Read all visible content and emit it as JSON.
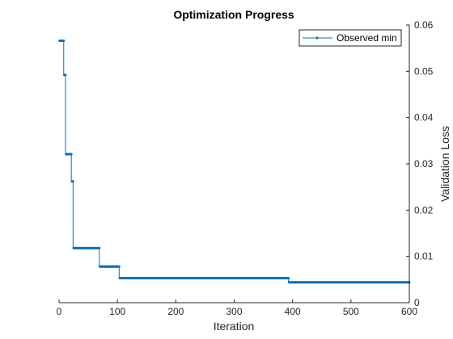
{
  "chart_data": {
    "type": "line",
    "title": "Optimization Progress",
    "xlabel": "Iteration",
    "ylabel": "Validation Loss",
    "xlim": [
      0,
      600
    ],
    "ylim": [
      0,
      0.06
    ],
    "x_ticks": [
      0,
      100,
      200,
      300,
      400,
      500,
      600
    ],
    "x_tick_labels": [
      "0",
      "100",
      "200",
      "300",
      "400",
      "500",
      "600"
    ],
    "y_ticks": [
      0,
      0.01,
      0.02,
      0.03,
      0.04,
      0.05,
      0.06
    ],
    "y_tick_labels": [
      "0",
      "0.01",
      "0.02",
      "0.03",
      "0.04",
      "0.05",
      "0.06"
    ],
    "y_axis_location": "right",
    "grid": false,
    "legend_placement": "top-right",
    "series": [
      {
        "name": "Observed min",
        "color": "#0072BD",
        "marker": "dot",
        "step_changes": [
          [
            1,
            0.0566
          ],
          [
            9,
            0.0492
          ],
          [
            12,
            0.0321
          ],
          [
            22,
            0.0262
          ],
          [
            25,
            0.0118
          ],
          [
            70,
            0.0078
          ],
          [
            104,
            0.0053
          ],
          [
            394,
            0.0044
          ]
        ],
        "last_x": 600
      }
    ]
  }
}
